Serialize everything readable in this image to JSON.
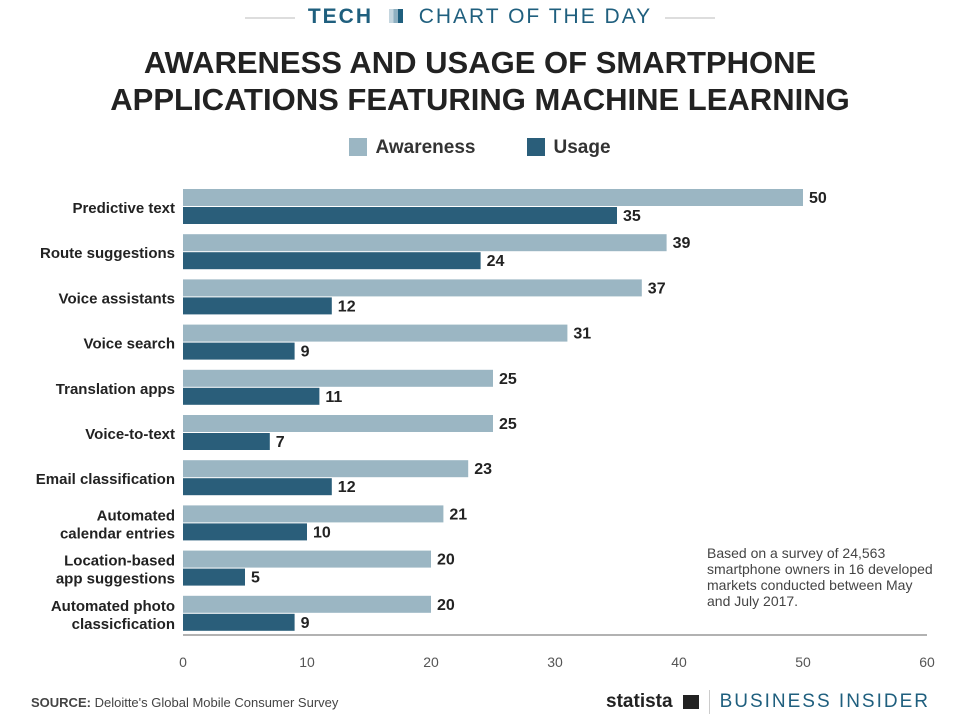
{
  "banner": {
    "left": "TECH",
    "right": "CHART OF THE DAY"
  },
  "chart_data": {
    "type": "bar",
    "orientation": "horizontal",
    "title": "AWARENESS AND USAGE OF SMARTPHONE APPLICATIONS FEATURING MACHINE LEARNING",
    "categories": [
      "Predictive text",
      "Route suggestions",
      "Voice assistants",
      "Voice search",
      "Translation apps",
      "Voice-to-text",
      "Email classification",
      "Automated calendar entries",
      "Location-based app suggestions",
      "Automated photo classicfication"
    ],
    "category_lines": [
      [
        "Predictive text"
      ],
      [
        "Route suggestions"
      ],
      [
        "Voice assistants"
      ],
      [
        "Voice search"
      ],
      [
        "Translation apps"
      ],
      [
        "Voice-to-text"
      ],
      [
        "Email classification"
      ],
      [
        "Automated",
        "calendar entries"
      ],
      [
        "Location-based",
        "app suggestions"
      ],
      [
        "Automated photo",
        "classicfication"
      ]
    ],
    "series": [
      {
        "name": "Awareness",
        "color": "#9bb6c3",
        "values": [
          50,
          39,
          37,
          31,
          25,
          25,
          23,
          21,
          20,
          20
        ]
      },
      {
        "name": "Usage",
        "color": "#2a5e7a",
        "values": [
          35,
          24,
          12,
          9,
          11,
          7,
          12,
          10,
          5,
          9
        ]
      }
    ],
    "xlim": [
      0,
      60
    ],
    "xticks": [
      0,
      10,
      20,
      30,
      40,
      50,
      60
    ],
    "grid": false,
    "legend_position": "top-center"
  },
  "note": "Based on a survey of 24,563 smartphone owners in 16 developed markets conducted between May and July 2017.",
  "source": {
    "label": "SOURCE:",
    "text": "Deloitte's Global Mobile Consumer Survey"
  },
  "brands": {
    "statista": "statista",
    "business_insider": "BUSINESS INSIDER"
  }
}
